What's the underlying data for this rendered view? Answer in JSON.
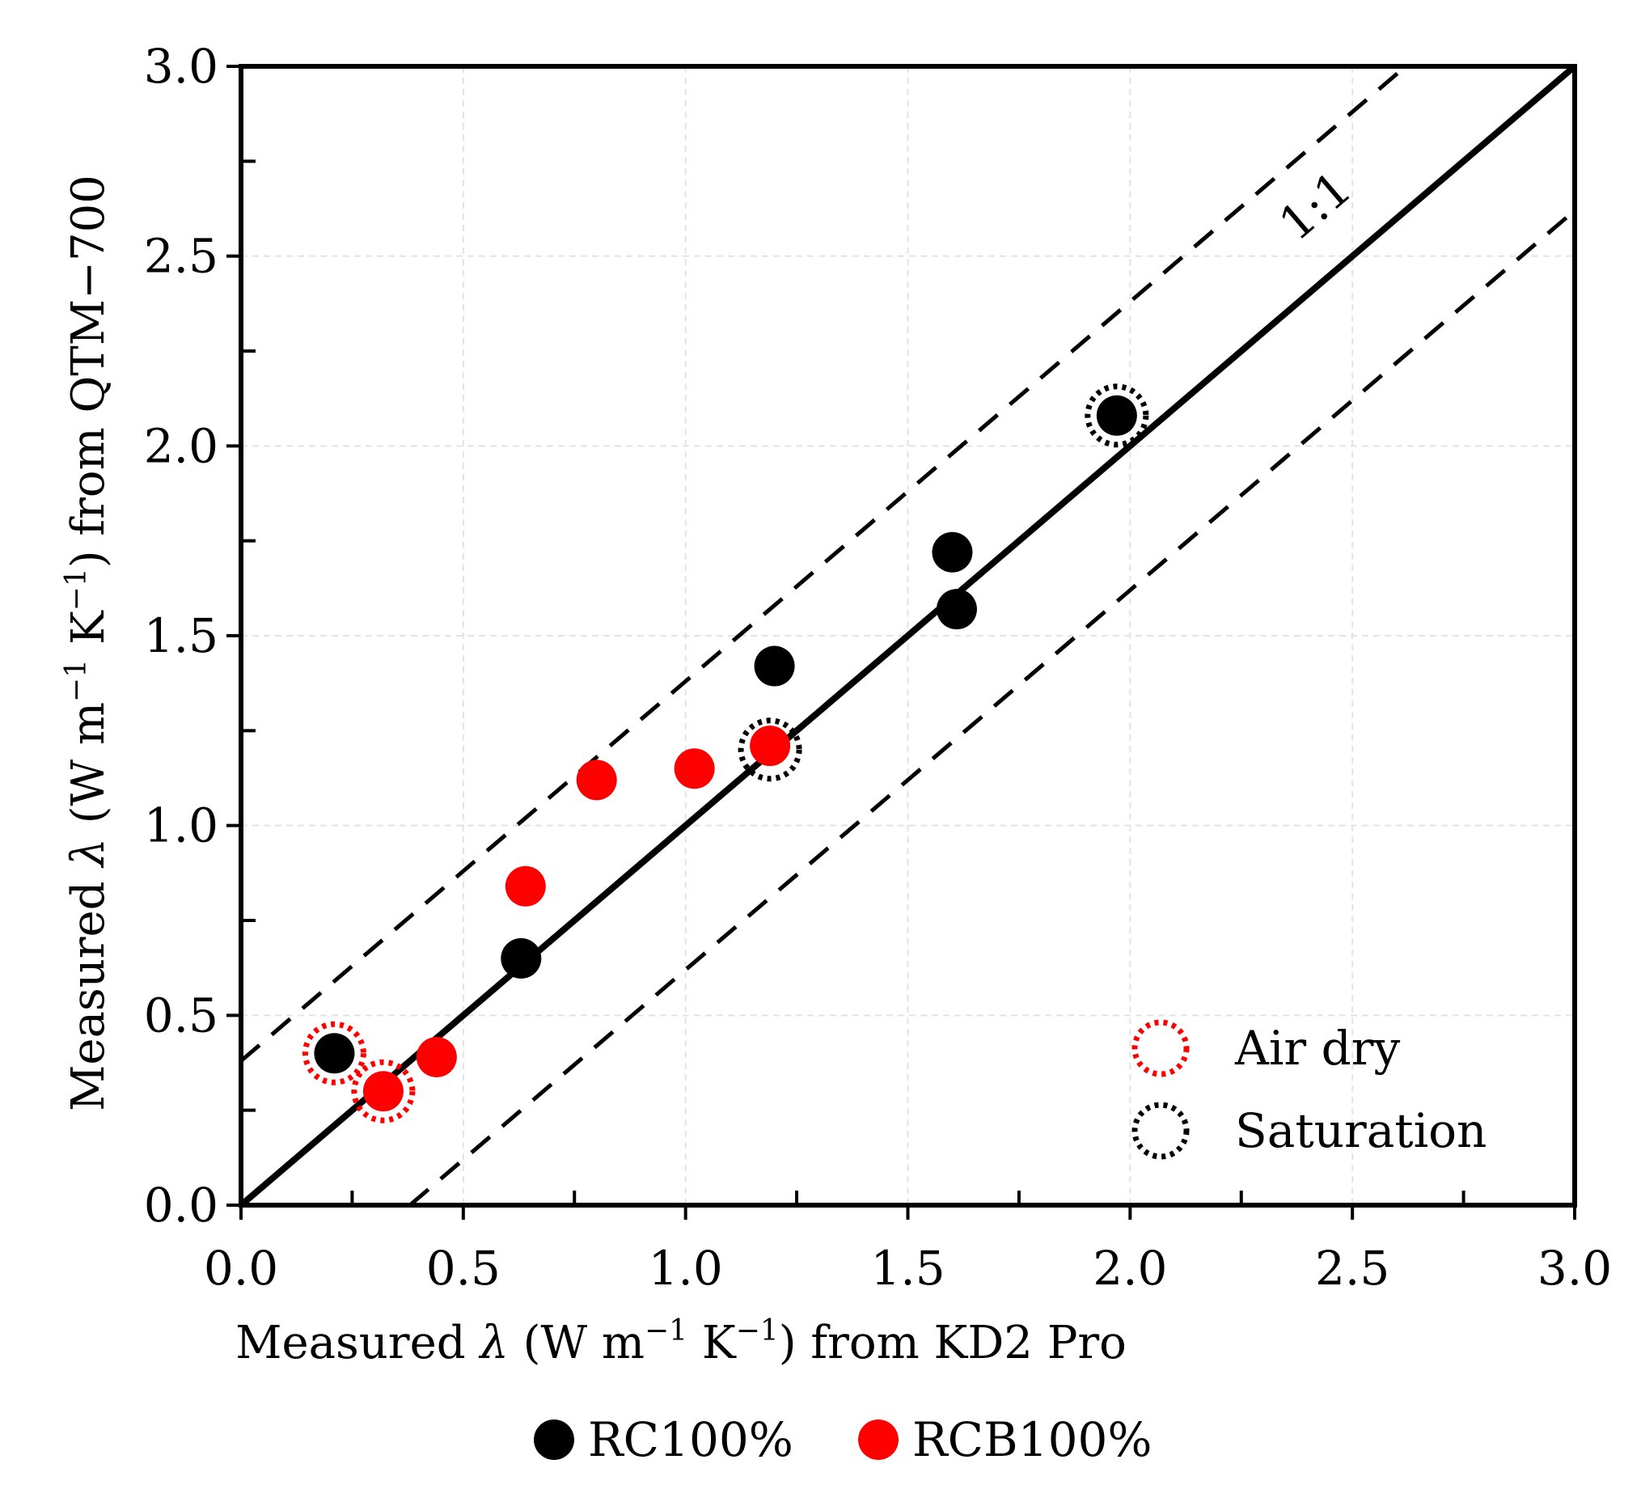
{
  "chart_data": {
    "type": "scatter",
    "xlabel": {
      "prefix": "Measured ",
      "symbol": "λ",
      "units_open": " (W m",
      "m_exp": "−1",
      "k": " K",
      "k_exp": "−1",
      "suffix": ") from KD2 Pro"
    },
    "ylabel": {
      "prefix": "Measured ",
      "symbol": "λ",
      "units_open": " (W m",
      "m_exp": "−1",
      "k": " K",
      "k_exp": "−1",
      "suffix": ") from QTM−700"
    },
    "xlim": [
      0,
      3
    ],
    "ylim": [
      0,
      3
    ],
    "xticks": [
      "0.0",
      "0.5",
      "1.0",
      "1.5",
      "2.0",
      "2.5",
      "3.0"
    ],
    "yticks": [
      "0.0",
      "0.5",
      "1.0",
      "1.5",
      "2.0",
      "2.5",
      "3.0"
    ],
    "grid": true,
    "reference_lines": [
      {
        "name": "1:1",
        "style": "solid",
        "offset": 0
      },
      {
        "name": "+dashed",
        "style": "dashed",
        "offset": 0.38
      },
      {
        "name": "-dashed",
        "style": "dashed",
        "offset": -0.38
      }
    ],
    "annotation": "1:1",
    "series": [
      {
        "name": "RC100%",
        "color": "#000000",
        "x": [
          0.21,
          0.63,
          1.2,
          1.6,
          1.61,
          1.97
        ],
        "y": [
          0.4,
          0.65,
          1.42,
          1.72,
          1.57,
          2.08
        ]
      },
      {
        "name": "RCB100%",
        "color": "#ff0000",
        "x": [
          0.32,
          0.44,
          0.64,
          0.8,
          1.02,
          1.19
        ],
        "y": [
          0.3,
          0.39,
          0.84,
          1.12,
          1.15,
          1.21
        ]
      }
    ],
    "condition_markers": [
      {
        "name": "Air dry",
        "color": "#ff0000",
        "points": [
          {
            "x": 0.21,
            "y": 0.4
          },
          {
            "x": 0.32,
            "y": 0.3
          }
        ]
      },
      {
        "name": "Saturation",
        "color": "#000000",
        "points": [
          {
            "x": 1.19,
            "y": 1.2
          },
          {
            "x": 1.97,
            "y": 2.08
          }
        ]
      }
    ],
    "legend": {
      "position": "bottom",
      "inset_position": "bottom-right"
    }
  }
}
